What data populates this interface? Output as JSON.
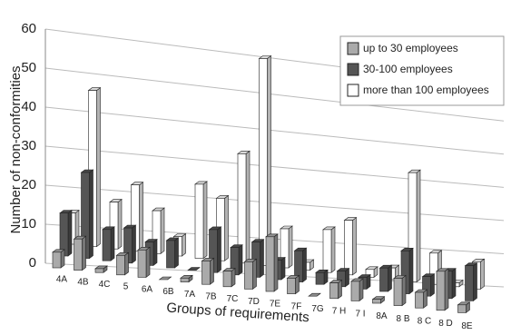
{
  "chart_data": {
    "type": "bar3d",
    "y_label": "Number of non-conformities",
    "x_label": "Groups of requirements",
    "categories": [
      "4A",
      "4B",
      "4C",
      "5",
      "6A",
      "6B",
      "7A",
      "7B",
      "7C",
      "7D",
      "7E",
      "7F",
      "7G",
      "7 H",
      "7 I",
      "8A",
      "8 B",
      "8 C",
      "8 D",
      "8E"
    ],
    "series": [
      {
        "name": "up to 30 employees",
        "color": "#aaaaaa",
        "values": [
          4,
          8,
          1,
          5,
          7,
          0,
          1,
          6,
          4,
          7,
          14,
          4,
          0,
          4,
          5,
          1,
          7,
          4,
          10,
          2
        ]
      },
      {
        "name": "30-100 employees",
        "color": "#555555",
        "values": [
          11,
          22,
          8,
          9,
          6,
          7,
          0,
          11,
          7,
          9,
          5,
          8,
          3,
          4,
          3,
          6,
          11,
          5,
          7,
          9
        ]
      },
      {
        "name": "more than 100 employees",
        "color": "#ffffff",
        "values": [
          8,
          40,
          12,
          17,
          11,
          5,
          19,
          16,
          28,
          53,
          10,
          2,
          11,
          14,
          2,
          3,
          28,
          8,
          1,
          7
        ]
      }
    ],
    "ylim": [
      0,
      60
    ],
    "yticks": [
      0,
      10,
      20,
      30,
      40,
      50,
      60
    ],
    "grid": true
  }
}
